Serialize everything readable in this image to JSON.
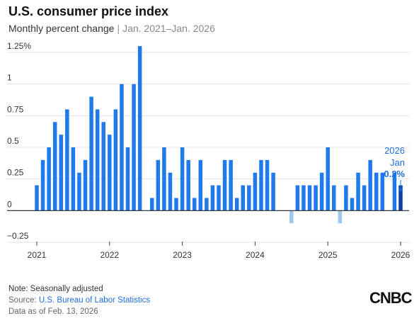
{
  "header": {
    "title": "U.S. consumer price index",
    "subtitle_main": "Monthly percent change",
    "subtitle_sep": "|",
    "subtitle_range": "Jan. 2021–Jan. 2026"
  },
  "footer": {
    "note": "Note: Seasonally adjusted",
    "source_label": "Source:",
    "source_link": "U.S. Bureau of Labor Statistics",
    "as_of": "Data as of Feb. 13, 2026",
    "logo_text": "CNBC"
  },
  "colors": {
    "bar": "#1f7aec",
    "bar_negative": "#9ec8ee",
    "bar_latest": "#0d3fa8",
    "grid": "#e3e3e3",
    "zero_line": "#222222",
    "annotation": "#1f6fe0"
  },
  "chart_data": {
    "type": "bar",
    "title": "U.S. consumer price index",
    "subtitle": "Monthly percent change | Jan. 2021–Jan. 2026",
    "xlabel": "",
    "ylabel": "",
    "ylim": [
      -0.25,
      1.25
    ],
    "y_ticks": [
      -0.25,
      0,
      0.25,
      0.5,
      0.75,
      1,
      1.25
    ],
    "y_tick_labels": [
      "−0.25",
      "0",
      "0.25",
      "0.5",
      "0.75",
      "1",
      "1.25%"
    ],
    "x_tick_labels": [
      "2021",
      "2022",
      "2023",
      "2024",
      "2025",
      "2026"
    ],
    "grid": true,
    "start": "2021-01",
    "values": [
      0.2,
      0.4,
      0.5,
      0.7,
      0.6,
      0.8,
      0.5,
      0.3,
      0.4,
      0.9,
      0.8,
      0.7,
      0.6,
      0.8,
      1.0,
      0.5,
      1.0,
      1.3,
      0.0,
      0.1,
      0.4,
      0.5,
      0.3,
      0.1,
      0.5,
      0.4,
      0.1,
      0.4,
      0.1,
      0.2,
      0.2,
      0.4,
      0.4,
      0.1,
      0.2,
      0.2,
      0.3,
      0.4,
      0.4,
      0.3,
      0.0,
      0.0,
      -0.1,
      0.2,
      0.2,
      0.2,
      0.2,
      0.3,
      0.5,
      0.2,
      -0.1,
      0.2,
      0.1,
      0.3,
      0.2,
      0.4,
      0.3,
      0.3,
      null,
      0.3,
      0.2
    ],
    "annotation": {
      "year": "2026",
      "month": "Jan",
      "value": "0.2%"
    }
  }
}
